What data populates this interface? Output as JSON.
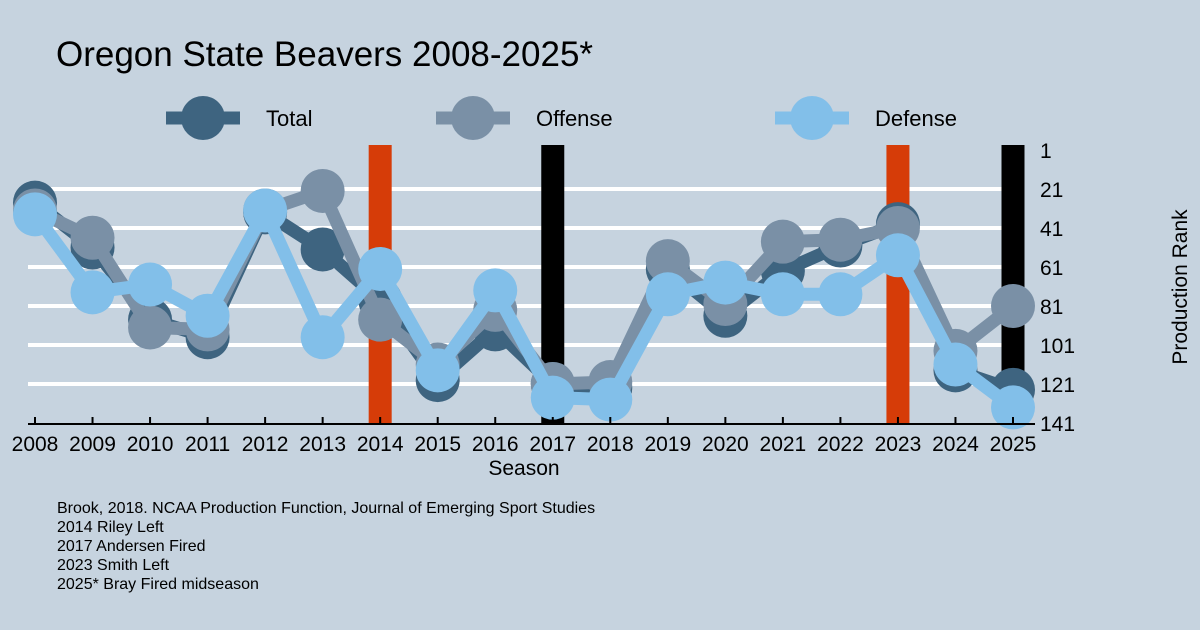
{
  "chart_data": {
    "type": "line",
    "title": "Oregon State Beavers 2008-2025*",
    "xlabel": "Season",
    "ylabel": "Production Rank",
    "y_reversed": true,
    "ylim": [
      1,
      141
    ],
    "yticks": [
      1,
      21,
      41,
      61,
      81,
      101,
      121,
      141
    ],
    "grid": true,
    "legend_position": "top",
    "categories": [
      "2008",
      "2009",
      "2010",
      "2011",
      "2012",
      "2013",
      "2014",
      "2015",
      "2016",
      "2017",
      "2018",
      "2019",
      "2020",
      "2021",
      "2022",
      "2023",
      "2024",
      "2025"
    ],
    "series": [
      {
        "name": "Total",
        "color": "#3e6480",
        "values": [
          28,
          51,
          88,
          97,
          33,
          52,
          78,
          119,
          93,
          121,
          123,
          62,
          86,
          63,
          50,
          39,
          114,
          124
        ]
      },
      {
        "name": "Offense",
        "color": "#7a90a6",
        "values": [
          32,
          46,
          92,
          93,
          32,
          22,
          88,
          111,
          83,
          121,
          120,
          58,
          80,
          48,
          47,
          41,
          104,
          81
        ]
      },
      {
        "name": "Defense",
        "color": "#82bfe9",
        "values": [
          34,
          74,
          70,
          86,
          32,
          97,
          62,
          114,
          73,
          128,
          129,
          75,
          69,
          75,
          75,
          55,
          111,
          133
        ]
      }
    ],
    "markers": [
      {
        "season": "2014",
        "color": "#d63c08"
      },
      {
        "season": "2017",
        "color": "#000000"
      },
      {
        "season": "2023",
        "color": "#d63c08"
      },
      {
        "season": "2025",
        "color": "#000000"
      }
    ]
  },
  "notes": [
    "Brook, 2018. NCAA Production Function, Journal of Emerging Sport Studies",
    "2014 Riley Left",
    "2017 Andersen Fired",
    "2023 Smith Left",
    "2025* Bray Fired midseason"
  ]
}
